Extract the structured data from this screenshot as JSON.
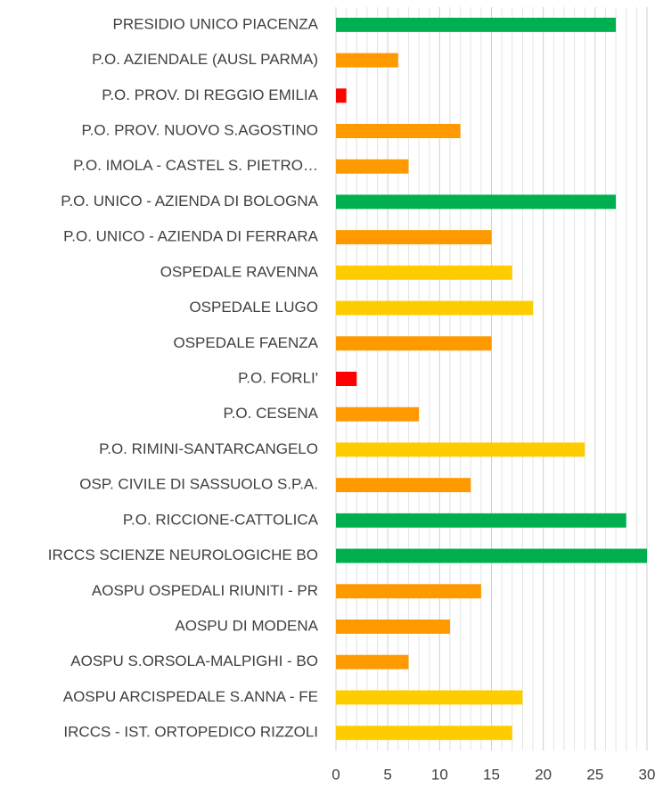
{
  "chart_data": {
    "type": "barh",
    "categories": [
      "PRESIDIO UNICO PIACENZA",
      "P.O. AZIENDALE (AUSL PARMA)",
      "P.O. PROV. DI REGGIO EMILIA",
      "P.O. PROV. NUOVO S.AGOSTINO",
      "P.O. IMOLA - CASTEL S. PIETRO…",
      "P.O. UNICO - AZIENDA DI BOLOGNA",
      "P.O. UNICO - AZIENDA DI FERRARA",
      "OSPEDALE RAVENNA",
      "OSPEDALE LUGO",
      "OSPEDALE FAENZA",
      "P.O. FORLI'",
      "P.O. CESENA",
      "P.O. RIMINI-SANTARCANGELO",
      "OSP. CIVILE DI SASSUOLO S.P.A.",
      "P.O. RICCIONE-CATTOLICA",
      "IRCCS SCIENZE NEUROLOGICHE BO",
      "AOSPU OSPEDALI RIUNITI - PR",
      "AOSPU DI MODENA",
      "AOSPU S.ORSOLA-MALPIGHI - BO",
      "AOSPU ARCISPEDALE S.ANNA - FE",
      "IRCCS - IST. ORTOPEDICO RIZZOLI"
    ],
    "values": [
      27,
      6,
      1,
      12,
      7,
      27,
      15,
      17,
      19,
      15,
      2,
      8,
      24,
      13,
      28,
      30,
      14,
      11,
      7,
      18,
      17
    ],
    "colors": [
      "#00b050",
      "#ff9900",
      "#ff0000",
      "#ff9900",
      "#ff9900",
      "#00b050",
      "#ff9900",
      "#ffcc00",
      "#ffcc00",
      "#ff9900",
      "#ff0000",
      "#ff9900",
      "#ffcc00",
      "#ff9900",
      "#00b050",
      "#00b050",
      "#ff9900",
      "#ff9900",
      "#ff9900",
      "#ffcc00",
      "#ffcc00"
    ],
    "xlim": [
      0,
      30
    ],
    "xticks": [
      0,
      5,
      10,
      15,
      20,
      25,
      30
    ],
    "minor_xticks": [
      1,
      2,
      3,
      4,
      6,
      7,
      8,
      9,
      11,
      12,
      13,
      14,
      16,
      17,
      18,
      19,
      21,
      22,
      23,
      24,
      26,
      27,
      28,
      29
    ],
    "grid": true
  }
}
